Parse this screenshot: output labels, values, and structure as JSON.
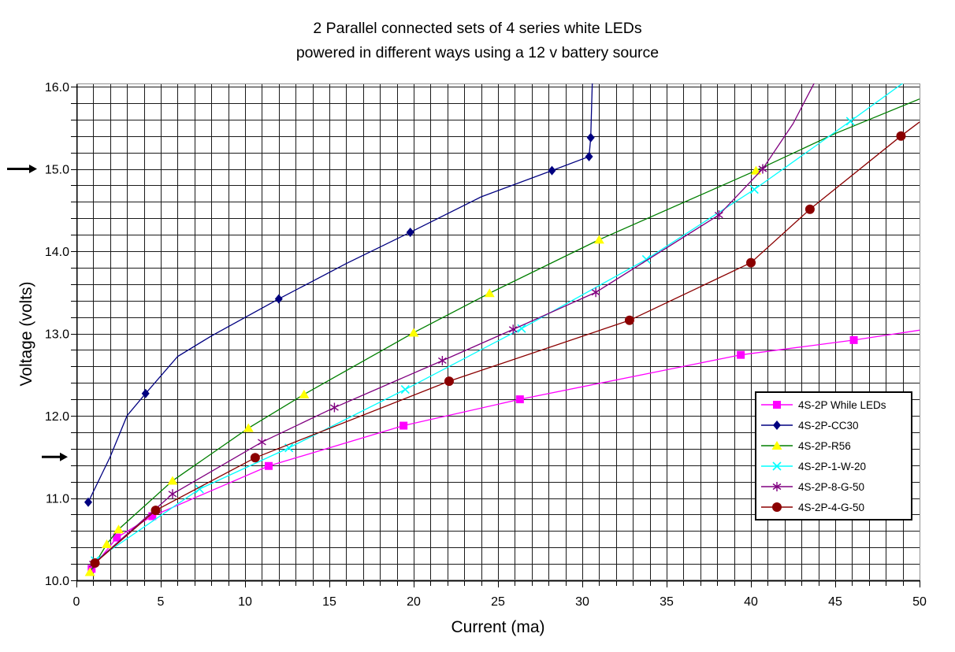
{
  "page": {
    "background": "#FFFFFF"
  },
  "chart_data": {
    "type": "line",
    "title_lines": [
      "2 Parallel connected sets of 4 series white LEDs",
      "powered in different ways using a 12 v battery source"
    ],
    "xlabel": "Current (ma)",
    "ylabel": "Voltage (volts)",
    "xlim": [
      0,
      50
    ],
    "ylim": [
      10.0,
      16.0
    ],
    "x_major_tick_values": [
      0,
      5,
      10,
      15,
      20,
      25,
      30,
      35,
      40,
      45,
      50
    ],
    "x_major_tick_labels": [
      "0",
      "5",
      "10",
      "15",
      "20",
      "25",
      "30",
      "35",
      "40",
      "45",
      "50"
    ],
    "x_minor_step": 1,
    "y_major_tick_values": [
      10,
      11,
      12,
      13,
      14,
      15,
      16
    ],
    "y_major_tick_labels": [
      "10.0",
      "11.0",
      "12.0",
      "13.0",
      "14.0",
      "15.0",
      "16.0"
    ],
    "y_minor_step": 0.2,
    "grid": "fine black grid, 1 ma x 0.2 V cells, both axes",
    "legend_position": "inside right, boxed",
    "grid_color": "#1A1A1A",
    "axis_color": "#000000",
    "border_color": "#909090",
    "series": [
      {
        "name": "4S-2P While LEDs",
        "line_color": "#FF00FF",
        "marker": "square",
        "marker_color": "#FF00FF",
        "points": [
          [
            0.9,
            10.14
          ],
          [
            2.4,
            10.52
          ],
          [
            4.5,
            10.78
          ],
          [
            11.4,
            11.39
          ],
          [
            19.4,
            11.88
          ],
          [
            26.3,
            12.2
          ],
          [
            39.4,
            12.74
          ],
          [
            46.1,
            12.92
          ],
          [
            50,
            13.04,
            0
          ]
        ]
      },
      {
        "name": "4S-2P-CC30",
        "line_color": "#000080",
        "marker": "diamond",
        "marker_color": "#000080",
        "points": [
          [
            0.7,
            10.95
          ],
          [
            2,
            11.5,
            0
          ],
          [
            3,
            12.0,
            0
          ],
          [
            4.1,
            12.27
          ],
          [
            6,
            12.72,
            0
          ],
          [
            8,
            12.97,
            0
          ],
          [
            12,
            13.42
          ],
          [
            16,
            13.85,
            0
          ],
          [
            19.8,
            14.23
          ],
          [
            24,
            14.66,
            0
          ],
          [
            28.2,
            14.98
          ],
          [
            30.4,
            15.15
          ],
          [
            30.5,
            15.38
          ],
          [
            30.6,
            16.1,
            0
          ]
        ]
      },
      {
        "name": "4S-2P-R56",
        "line_color": "#007F00",
        "marker": "triangle",
        "marker_color": "#FFFF00",
        "points": [
          [
            0.8,
            10.1
          ],
          [
            1.8,
            10.44
          ],
          [
            2.5,
            10.62
          ],
          [
            5.7,
            11.21
          ],
          [
            10.2,
            11.85
          ],
          [
            13.5,
            12.26
          ],
          [
            20,
            13.01
          ],
          [
            24.5,
            13.49
          ],
          [
            31,
            14.14
          ],
          [
            40.3,
            14.98
          ],
          [
            45,
            15.43,
            0
          ],
          [
            50,
            15.85,
            0
          ]
        ]
      },
      {
        "name": "4S-2P-1-W-20",
        "line_color": "#00FFFF",
        "marker": "x",
        "marker_color": "#00FFFF",
        "points": [
          [
            1.1,
            10.24
          ],
          [
            7.3,
            11.11
          ],
          [
            12.6,
            11.61
          ],
          [
            19.5,
            12.32
          ],
          [
            26.4,
            13.06
          ],
          [
            33.8,
            13.9
          ],
          [
            40.2,
            14.75
          ],
          [
            45.9,
            15.58
          ],
          [
            49.4,
            16.1,
            0
          ]
        ]
      },
      {
        "name": "4S-2P-8-G-50",
        "line_color": "#800080",
        "marker": "asterisk",
        "marker_color": "#800080",
        "points": [
          [
            1,
            10.2
          ],
          [
            5.7,
            11.05
          ],
          [
            11,
            11.68
          ],
          [
            15.3,
            12.1
          ],
          [
            21.7,
            12.67
          ],
          [
            25.9,
            13.05
          ],
          [
            30.8,
            13.5
          ],
          [
            38.1,
            14.44
          ],
          [
            40.7,
            15.0
          ],
          [
            42.5,
            15.55,
            0
          ],
          [
            43.9,
            16.1,
            0
          ]
        ]
      },
      {
        "name": "4S-2P-4-G-50",
        "line_color": "#8B0000",
        "marker": "circle",
        "marker_color": "#8B0000",
        "points": [
          [
            1.1,
            10.21
          ],
          [
            4.7,
            10.85
          ],
          [
            10.6,
            11.49
          ],
          [
            22.1,
            12.42
          ],
          [
            32.8,
            13.16
          ],
          [
            40,
            13.86
          ],
          [
            43.5,
            14.51
          ],
          [
            48.9,
            15.4
          ],
          [
            50,
            15.57,
            0
          ]
        ]
      }
    ],
    "annotations": [
      {
        "type": "arrow-right",
        "target_voltage": 15.0
      },
      {
        "type": "arrow-right",
        "target_voltage": 11.5
      }
    ]
  }
}
